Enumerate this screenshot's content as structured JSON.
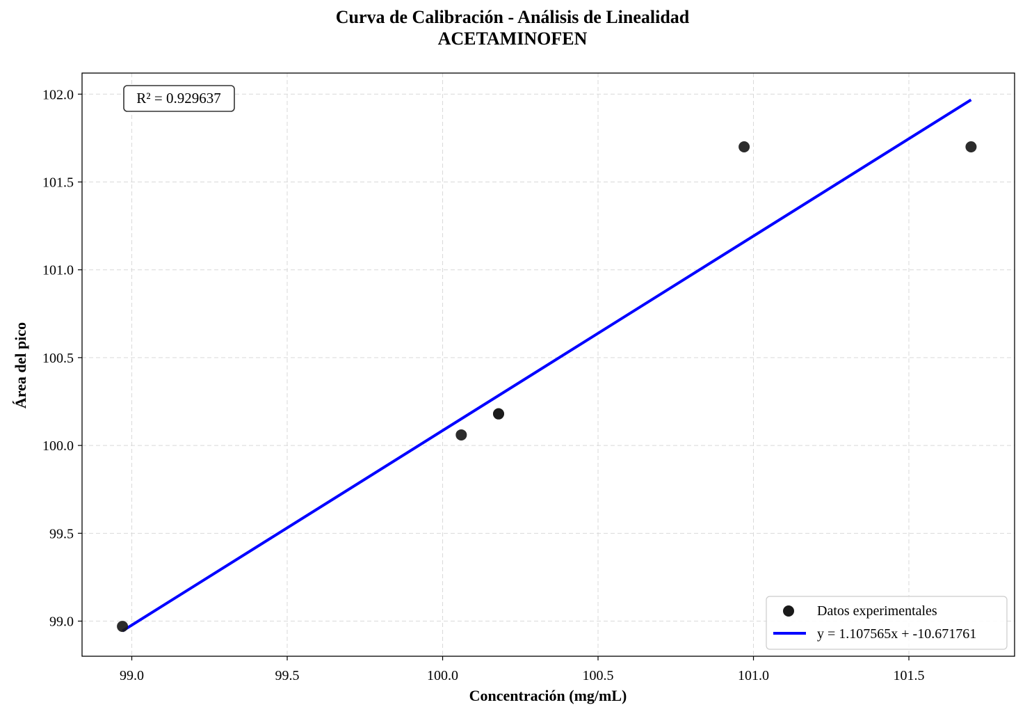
{
  "chart_data": {
    "type": "scatter",
    "title": "Curva de Calibración - Análisis de Linealidad",
    "subtitle": "ACETAMINOFEN",
    "xlabel": "Concentración (mg/mL)",
    "ylabel": "Área del pico",
    "xlim": [
      98.84,
      101.84
    ],
    "ylim": [
      98.8,
      102.12
    ],
    "xticks": [
      "99.0",
      "99.5",
      "100.0",
      "100.5",
      "101.0",
      "101.5"
    ],
    "yticks": [
      "99.0",
      "99.5",
      "100.0",
      "100.5",
      "101.0",
      "101.5",
      "102.0"
    ],
    "grid": true,
    "legend_position": "bottom-right",
    "series": [
      {
        "name": "Datos experimentales",
        "kind": "scatter",
        "color": "#1a1a1a",
        "x": [
          98.97,
          100.06,
          100.18,
          100.18,
          100.97,
          101.7
        ],
        "y": [
          98.97,
          100.06,
          100.18,
          100.18,
          101.7,
          101.7
        ]
      },
      {
        "name": "y = 1.107565x + -10.671761",
        "kind": "line",
        "color": "#0000ff",
        "slope": 1.107565,
        "intercept": -10.671761,
        "x_range": [
          98.97,
          101.7
        ]
      }
    ],
    "annotation": "R² = 0.929637"
  }
}
